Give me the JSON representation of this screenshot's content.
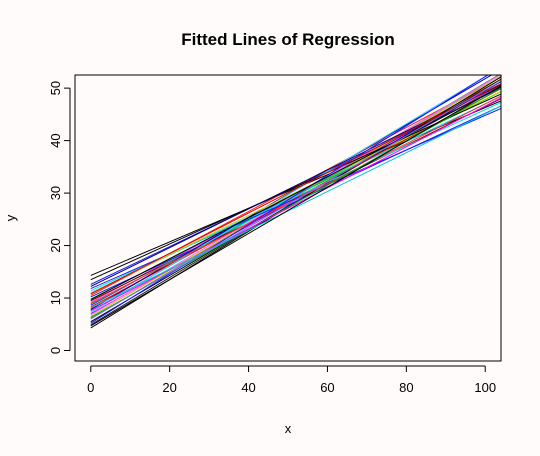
{
  "chart_data": {
    "type": "line",
    "title": "Fitted Lines of Regression",
    "xlabel": "x",
    "ylabel": "y",
    "xlim": [
      -4,
      104
    ],
    "ylim": [
      -2,
      52.5
    ],
    "x_ticks": [
      0,
      20,
      40,
      60,
      80,
      100
    ],
    "y_ticks": [
      0,
      10,
      20,
      30,
      40,
      50
    ],
    "grid": false,
    "legend": "none",
    "series_range": [
      0,
      104
    ],
    "series": [
      {
        "intercept": 14.3,
        "slope": 0.32,
        "color": "#000000"
      },
      {
        "intercept": 12.6,
        "slope": 0.36,
        "color": "#1a1aff"
      },
      {
        "intercept": 11.0,
        "slope": 0.36,
        "color": "#00ccff"
      },
      {
        "intercept": 10.5,
        "slope": 0.4,
        "color": "#ff1a1a"
      },
      {
        "intercept": 9.8,
        "slope": 0.38,
        "color": "#00cc00"
      },
      {
        "intercept": 9.2,
        "slope": 0.4,
        "color": "#ff33ff"
      },
      {
        "intercept": 8.6,
        "slope": 0.41,
        "color": "#1a1aff"
      },
      {
        "intercept": 8.0,
        "slope": 0.42,
        "color": "#ff0000"
      },
      {
        "intercept": 7.5,
        "slope": 0.43,
        "color": "#00e0e0"
      },
      {
        "intercept": 7.0,
        "slope": 0.42,
        "color": "#cc00cc"
      },
      {
        "intercept": 6.5,
        "slope": 0.44,
        "color": "#c8c800"
      },
      {
        "intercept": 6.0,
        "slope": 0.45,
        "color": "#808080"
      },
      {
        "intercept": 5.5,
        "slope": 0.44,
        "color": "#000000"
      },
      {
        "intercept": 4.9,
        "slope": 0.45,
        "color": "#222222"
      },
      {
        "intercept": 4.3,
        "slope": 0.46,
        "color": "#000000"
      },
      {
        "intercept": 10.2,
        "slope": 0.35,
        "color": "#1a1aff"
      },
      {
        "intercept": 9.5,
        "slope": 0.37,
        "color": "#7a0000"
      },
      {
        "intercept": 8.8,
        "slope": 0.4,
        "color": "#00cc66"
      },
      {
        "intercept": 8.3,
        "slope": 0.4,
        "color": "#ff0000"
      },
      {
        "intercept": 7.8,
        "slope": 0.44,
        "color": "#0000aa"
      },
      {
        "intercept": 7.2,
        "slope": 0.45,
        "color": "#33ccff"
      },
      {
        "intercept": 6.8,
        "slope": 0.44,
        "color": "#ff66ff"
      },
      {
        "intercept": 11.8,
        "slope": 0.33,
        "color": "#1a1aff"
      },
      {
        "intercept": 11.4,
        "slope": 0.345,
        "color": "#00e0e0"
      },
      {
        "intercept": 10.9,
        "slope": 0.37,
        "color": "#d4d400"
      },
      {
        "intercept": 13.5,
        "slope": 0.34,
        "color": "#000000"
      },
      {
        "intercept": 12.2,
        "slope": 0.37,
        "color": "#000066"
      },
      {
        "intercept": 9.0,
        "slope": 0.38,
        "color": "#ff3333"
      },
      {
        "intercept": 6.3,
        "slope": 0.42,
        "color": "#00aa00"
      },
      {
        "intercept": 5.2,
        "slope": 0.47,
        "color": "#1a1aff"
      },
      {
        "intercept": 7.6,
        "slope": 0.39,
        "color": "#ff00ff"
      },
      {
        "intercept": 8.1,
        "slope": 0.37,
        "color": "#00cccc"
      },
      {
        "intercept": 9.7,
        "slope": 0.39,
        "color": "#000000"
      },
      {
        "intercept": 10.8,
        "slope": 0.385,
        "color": "#e00000"
      },
      {
        "intercept": 6.1,
        "slope": 0.435,
        "color": "#7070ff"
      },
      {
        "intercept": 4.7,
        "slope": 0.44,
        "color": "#000000"
      }
    ]
  }
}
